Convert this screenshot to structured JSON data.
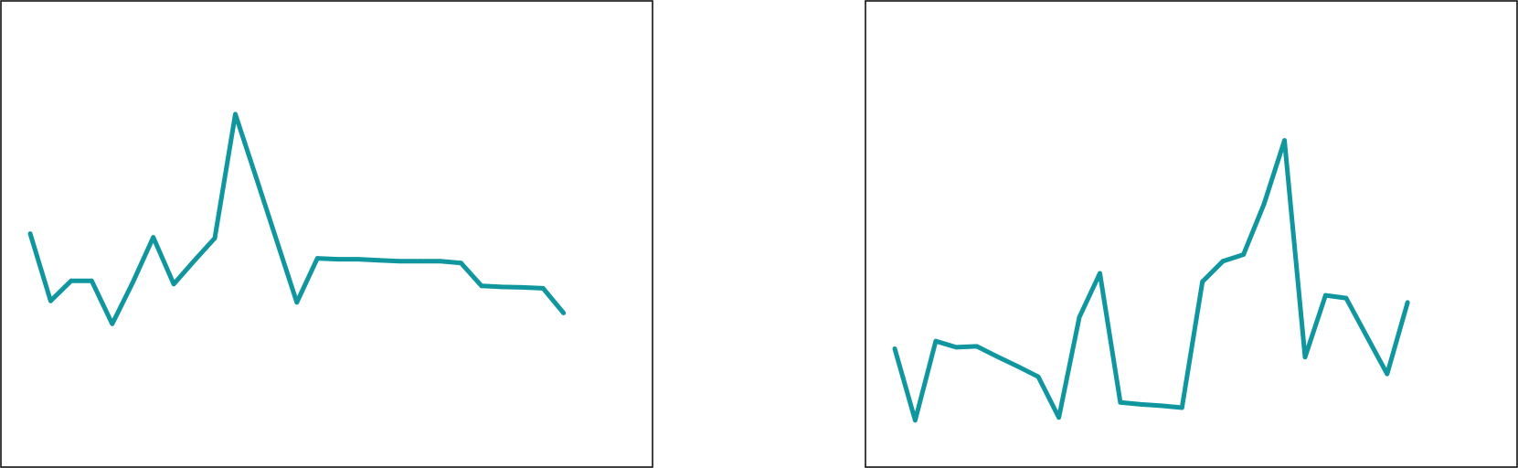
{
  "chart_data": [
    {
      "type": "line",
      "title": "",
      "xlabel": "",
      "ylabel": "",
      "grid": false,
      "legend": "none",
      "ylim": [
        0,
        100
      ],
      "line_color": "#10969f",
      "frame_color": "#111111",
      "x": [
        0,
        1,
        2,
        3,
        4,
        5,
        6,
        7,
        8,
        9,
        10,
        11,
        12,
        13,
        14,
        15,
        16,
        17,
        18,
        19,
        20,
        21,
        22,
        23,
        24,
        25,
        26,
        27,
        28,
        29
      ],
      "values": [
        50.1,
        35.7,
        40.0,
        40.0,
        30.8,
        39.6,
        49.3,
        39.3,
        44.3,
        49.1,
        75.6,
        62.3,
        48.8,
        35.4,
        44.8,
        44.6,
        44.6,
        44.4,
        44.2,
        44.2,
        44.2,
        43.8,
        38.9,
        38.7,
        38.6,
        38.4,
        33.1,
        null,
        null,
        null
      ]
    },
    {
      "type": "line",
      "title": "",
      "xlabel": "",
      "ylabel": "",
      "grid": false,
      "legend": "none",
      "ylim": [
        0,
        100
      ],
      "line_color": "#10969f",
      "frame_color": "#111111",
      "x": [
        0,
        1,
        2,
        3,
        4,
        5,
        6,
        7,
        8,
        9,
        10,
        11,
        12,
        13,
        14,
        15,
        16,
        17,
        18,
        19,
        20,
        21,
        22,
        23,
        24,
        25,
        26,
        27,
        28,
        29
      ],
      "values": [
        25.5,
        10.2,
        27.1,
        25.8,
        26.0,
        23.8,
        21.7,
        19.5,
        10.8,
        32.2,
        41.6,
        14.0,
        13.6,
        13.3,
        12.9,
        39.8,
        44.2,
        45.6,
        56.4,
        70.0,
        23.7,
        36.9,
        36.3,
        28.2,
        20.1,
        35.4,
        null,
        null,
        null,
        null
      ]
    }
  ]
}
